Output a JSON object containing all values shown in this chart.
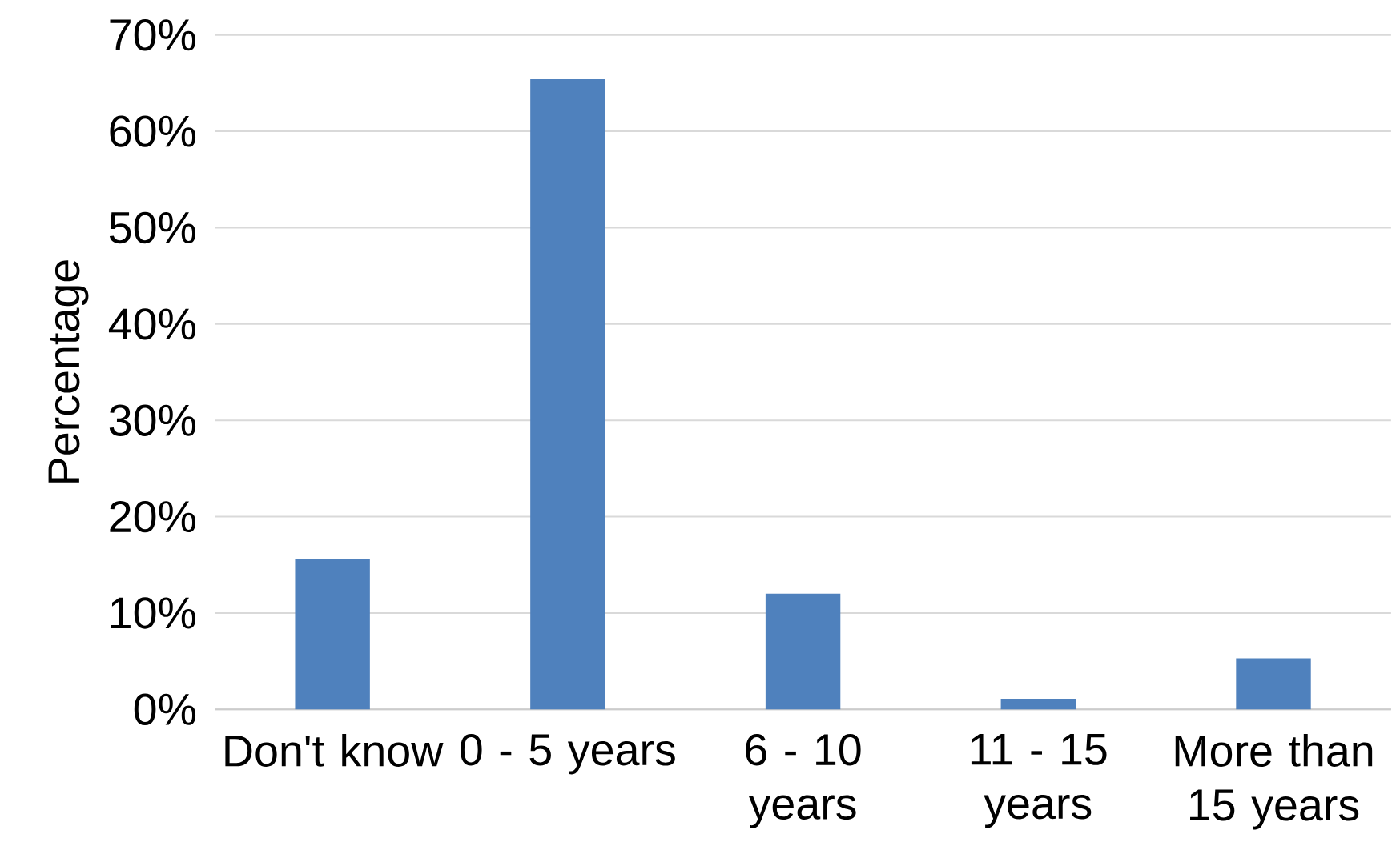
{
  "chart_data": {
    "type": "bar",
    "ylabel": "Percentage",
    "categories": [
      "Don't know",
      "0 - 5 years",
      "6 - 10 years",
      "11 - 15 years",
      "More than 15 years"
    ],
    "values": [
      15.6,
      65.4,
      12.0,
      1.1,
      5.3
    ],
    "color": "#4f81bd",
    "ylim": [
      0,
      70
    ],
    "yticks": [
      {
        "value": 0,
        "label": "0%"
      },
      {
        "value": 10,
        "label": "10%"
      },
      {
        "value": 20,
        "label": "20%"
      },
      {
        "value": 30,
        "label": "30%"
      },
      {
        "value": 40,
        "label": "40%"
      },
      {
        "value": 50,
        "label": "50%"
      },
      {
        "value": 60,
        "label": "60%"
      },
      {
        "value": 70,
        "label": "70%"
      }
    ],
    "grid": "y"
  }
}
